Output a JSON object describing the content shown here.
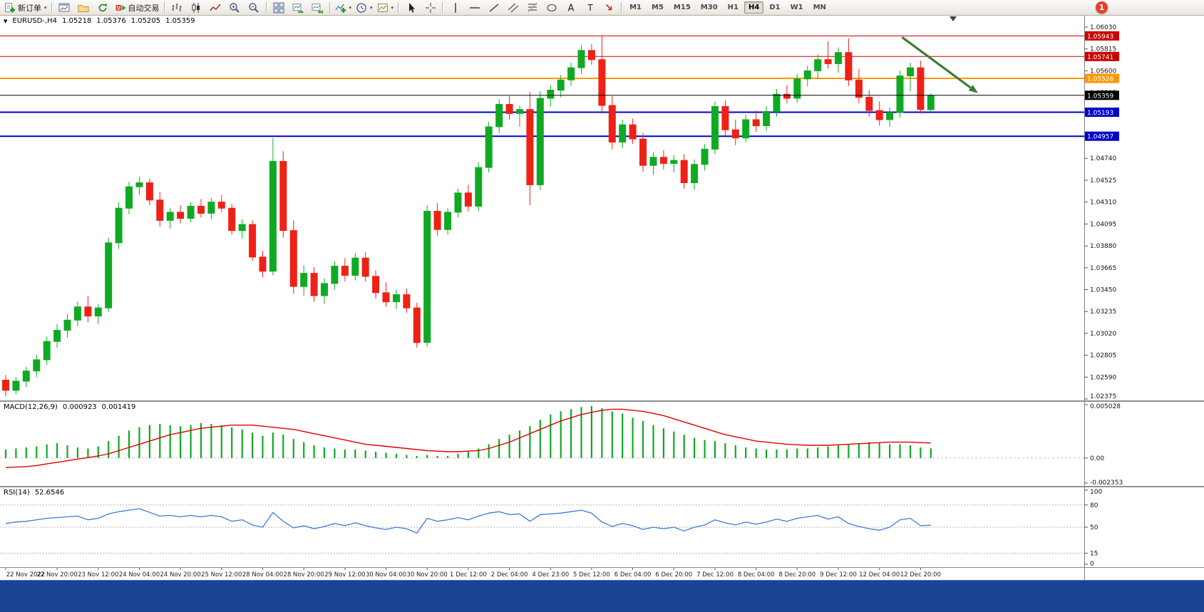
{
  "app": {
    "notification_count": "1"
  },
  "toolbar": {
    "active_timeframe": "H4",
    "items": [
      {
        "type": "button",
        "icon": "new-order-icon",
        "label": "新订单",
        "caret": true,
        "name": "new-order"
      },
      {
        "type": "sep"
      },
      {
        "type": "button",
        "icon": "chart-window-icon",
        "name": "new-chart"
      },
      {
        "type": "button",
        "icon": "profiles-icon",
        "name": "profiles"
      },
      {
        "type": "button",
        "icon": "refresh-icon",
        "name": "refresh"
      },
      {
        "type": "button",
        "icon": "autotrading-icon",
        "label": "自动交易",
        "name": "autotrading"
      },
      {
        "type": "sep"
      },
      {
        "type": "button",
        "icon": "bars-chart-icon",
        "name": "bar-chart-mode"
      },
      {
        "type": "button",
        "icon": "candles-chart-icon",
        "name": "candle-chart-mode"
      },
      {
        "type": "button",
        "icon": "line-chart-icon",
        "name": "line-chart-mode"
      },
      {
        "type": "button",
        "icon": "zoom-in-icon",
        "name": "zoom-in"
      },
      {
        "type": "button",
        "icon": "zoom-out-icon",
        "name": "zoom-out"
      },
      {
        "type": "sep"
      },
      {
        "type": "button",
        "icon": "tile-windows-icon",
        "name": "tile-windows"
      },
      {
        "type": "button",
        "icon": "auto-scroll-icon",
        "name": "auto-scroll"
      },
      {
        "type": "button",
        "icon": "chart-shift-icon",
        "name": "chart-shift"
      },
      {
        "type": "sep"
      },
      {
        "type": "button",
        "icon": "indicators-add-icon",
        "name": "indicators",
        "caret": true
      },
      {
        "type": "button",
        "icon": "period-clock-icon",
        "name": "periods",
        "caret": true
      },
      {
        "type": "button",
        "icon": "template-chart-icon",
        "name": "templates",
        "caret": true
      },
      {
        "type": "sep"
      },
      {
        "type": "button",
        "icon": "cursor-icon",
        "name": "cursor-tool"
      },
      {
        "type": "button",
        "icon": "crosshair-icon",
        "name": "crosshair-tool"
      },
      {
        "type": "sep"
      },
      {
        "type": "button",
        "icon": "vline-icon",
        "name": "vertical-line-tool"
      },
      {
        "type": "button",
        "icon": "hline-icon",
        "name": "horizontal-line-tool"
      },
      {
        "type": "button",
        "icon": "trendline-icon",
        "name": "trendline-tool"
      },
      {
        "type": "button",
        "icon": "channel-icon",
        "name": "channel-tool"
      },
      {
        "type": "button",
        "icon": "fibonacci-icon",
        "name": "fibonacci-tool"
      },
      {
        "type": "button",
        "icon": "shapes-icon",
        "name": "shapes-tool"
      },
      {
        "type": "button",
        "icon": "text-icon",
        "name": "text-tool"
      },
      {
        "type": "button",
        "icon": "label-icon",
        "name": "label-tool"
      },
      {
        "type": "button",
        "icon": "arrow-tool-icon",
        "name": "arrows-tool"
      },
      {
        "type": "sep"
      },
      {
        "type": "tf",
        "label": "M1"
      },
      {
        "type": "tf",
        "label": "M5"
      },
      {
        "type": "tf",
        "label": "M15"
      },
      {
        "type": "tf",
        "label": "M30"
      },
      {
        "type": "tf",
        "label": "H1"
      },
      {
        "type": "tf",
        "label": "H4"
      },
      {
        "type": "tf",
        "label": "D1"
      },
      {
        "type": "tf",
        "label": "W1"
      },
      {
        "type": "tf",
        "label": "MN"
      }
    ]
  },
  "chart": {
    "title": {
      "symbol": "EURUSD-,H4",
      "open": "1.05218",
      "high": "1.05376",
      "low": "1.05205",
      "close": "1.05359"
    },
    "macd_label": {
      "name": "MACD(12,26,9)",
      "value1": "0.000923",
      "value2": "0.001419"
    },
    "rsi_label": {
      "name": "RSI(14)",
      "value": "52.6546"
    }
  },
  "chart_data": {
    "type": "candlestick",
    "symbol": "EURUSD-",
    "period": "H4",
    "colors": {
      "up": "#0faa22",
      "down": "#ee2116",
      "macd_histogram": "#0faa22",
      "macd_signal": "#e00000",
      "rsi_line": "#3e7bd6",
      "arrow": "#3a7d35",
      "bid_line": "#000000",
      "level_red": "#cc0000",
      "level_orange": "#ff9900",
      "level_blue": "#0000cc"
    },
    "price_axis": {
      "top_value": 1.0603,
      "bottom_value": 1.02375,
      "step": 0.00215,
      "ticks": [
        "1.06030",
        "1.05815",
        "1.05600",
        "1.05385",
        "1.05170",
        "1.04955",
        "1.04740",
        "1.04525",
        "1.04310",
        "1.04095",
        "1.03880",
        "1.03665",
        "1.03450",
        "1.03235",
        "1.03020",
        "1.02805",
        "1.02590",
        "1.02375"
      ]
    },
    "time_axis": {
      "labels": [
        "22 Nov 2022",
        "22 Nov 20:00",
        "23 Nov 12:00",
        "24 Nov 04:00",
        "24 Nov 20:00",
        "25 Nov 12:00",
        "28 Nov 04:00",
        "28 Nov 20:00",
        "29 Nov 12:00",
        "30 Nov 04:00",
        "30 Nov 20:00",
        "1 Dec 12:00",
        "2 Dec 04:00",
        "4 Dec 23:00",
        "5 Dec 12:00",
        "6 Dec 04:00",
        "6 Dec 20:00",
        "7 Dec 12:00",
        "8 Dec 04:00",
        "8 Dec 20:00",
        "9 Dec 12:00",
        "12 Dec 04:00",
        "12 Dec 20:00"
      ],
      "label_candle_indices": [
        0,
        5,
        9,
        13,
        17,
        21,
        25,
        29,
        33,
        37,
        41,
        45,
        49,
        53,
        57,
        61,
        65,
        69,
        73,
        77,
        81,
        85,
        89
      ]
    },
    "candles": [
      [
        1.0256,
        1.0261,
        1.024,
        1.0246
      ],
      [
        1.0246,
        1.0259,
        1.0242,
        1.0255
      ],
      [
        1.0255,
        1.0269,
        1.0249,
        1.0265
      ],
      [
        1.0265,
        1.0281,
        1.0259,
        1.0276
      ],
      [
        1.0276,
        1.0299,
        1.0271,
        1.0294
      ],
      [
        1.0294,
        1.0311,
        1.0288,
        1.0305
      ],
      [
        1.0305,
        1.0321,
        1.0298,
        1.0315
      ],
      [
        1.0315,
        1.0333,
        1.0309,
        1.0328
      ],
      [
        1.0328,
        1.0339,
        1.0313,
        1.0319
      ],
      [
        1.0319,
        1.0331,
        1.0311,
        1.0327
      ],
      [
        1.0327,
        1.0396,
        1.0323,
        1.0391
      ],
      [
        1.0391,
        1.0431,
        1.0385,
        1.0425
      ],
      [
        1.0425,
        1.0451,
        1.0419,
        1.0446
      ],
      [
        1.0446,
        1.0456,
        1.0438,
        1.045
      ],
      [
        1.045,
        1.0454,
        1.0428,
        1.0433
      ],
      [
        1.0433,
        1.0441,
        1.0407,
        1.0413
      ],
      [
        1.0413,
        1.0425,
        1.0405,
        1.0421
      ],
      [
        1.0421,
        1.0428,
        1.041,
        1.0415
      ],
      [
        1.0415,
        1.0431,
        1.0411,
        1.0427
      ],
      [
        1.0427,
        1.0434,
        1.0416,
        1.042
      ],
      [
        1.042,
        1.0435,
        1.0414,
        1.0431
      ],
      [
        1.0431,
        1.0438,
        1.0421,
        1.0425
      ],
      [
        1.0425,
        1.0429,
        1.0399,
        1.0403
      ],
      [
        1.0403,
        1.0414,
        1.0395,
        1.0409
      ],
      [
        1.0409,
        1.0413,
        1.0373,
        1.0377
      ],
      [
        1.0377,
        1.0383,
        1.0357,
        1.0363
      ],
      [
        1.0363,
        1.0494,
        1.0359,
        1.0471
      ],
      [
        1.0471,
        1.0481,
        1.0396,
        1.0403
      ],
      [
        1.0403,
        1.0413,
        1.0341,
        1.0348
      ],
      [
        1.0348,
        1.0369,
        1.0339,
        1.0361
      ],
      [
        1.0361,
        1.0367,
        1.0333,
        1.0339
      ],
      [
        1.0339,
        1.0356,
        1.0331,
        1.0351
      ],
      [
        1.0351,
        1.0373,
        1.0345,
        1.0368
      ],
      [
        1.0368,
        1.0376,
        1.0353,
        1.0359
      ],
      [
        1.0359,
        1.0381,
        1.0354,
        1.0376
      ],
      [
        1.0376,
        1.0382,
        1.0353,
        1.0358
      ],
      [
        1.0358,
        1.0364,
        1.0336,
        1.0342
      ],
      [
        1.0342,
        1.0352,
        1.0328,
        1.0333
      ],
      [
        1.0333,
        1.0345,
        1.0326,
        1.034
      ],
      [
        1.034,
        1.0346,
        1.0322,
        1.0327
      ],
      [
        1.0327,
        1.0332,
        1.0288,
        1.0293
      ],
      [
        1.0293,
        1.0428,
        1.0289,
        1.0422
      ],
      [
        1.0422,
        1.043,
        1.0398,
        1.0404
      ],
      [
        1.0404,
        1.0425,
        1.0399,
        1.0421
      ],
      [
        1.0421,
        1.0444,
        1.0416,
        1.044
      ],
      [
        1.044,
        1.0448,
        1.0422,
        1.0427
      ],
      [
        1.0427,
        1.047,
        1.0422,
        1.0465
      ],
      [
        1.0465,
        1.051,
        1.046,
        1.0505
      ],
      [
        1.0505,
        1.0532,
        1.0499,
        1.0527
      ],
      [
        1.0527,
        1.0535,
        1.0512,
        1.0518
      ],
      [
        1.0518,
        1.0526,
        1.0505,
        1.0522
      ],
      [
        1.0522,
        1.0539,
        1.0428,
        1.0448
      ],
      [
        1.0448,
        1.054,
        1.0443,
        1.0533
      ],
      [
        1.0533,
        1.0546,
        1.0525,
        1.0541
      ],
      [
        1.0541,
        1.0556,
        1.0534,
        1.0551
      ],
      [
        1.0551,
        1.0568,
        1.0545,
        1.0563
      ],
      [
        1.0563,
        1.0585,
        1.0557,
        1.058
      ],
      [
        1.058,
        1.0586,
        1.0566,
        1.0571
      ],
      [
        1.0571,
        1.0595,
        1.0518,
        1.0526
      ],
      [
        1.0526,
        1.0535,
        1.0483,
        1.049
      ],
      [
        1.049,
        1.0512,
        1.0484,
        1.0507
      ],
      [
        1.0507,
        1.0513,
        1.0488,
        1.0493
      ],
      [
        1.0493,
        1.0499,
        1.0461,
        1.0467
      ],
      [
        1.0467,
        1.048,
        1.0458,
        1.0475
      ],
      [
        1.0475,
        1.0482,
        1.0463,
        1.0469
      ],
      [
        1.0469,
        1.0477,
        1.046,
        1.0472
      ],
      [
        1.0472,
        1.0478,
        1.0444,
        1.045
      ],
      [
        1.045,
        1.0473,
        1.0443,
        1.0468
      ],
      [
        1.0468,
        1.0488,
        1.0462,
        1.0483
      ],
      [
        1.0483,
        1.053,
        1.0478,
        1.0525
      ],
      [
        1.0525,
        1.0531,
        1.0496,
        1.0502
      ],
      [
        1.0502,
        1.0512,
        1.0487,
        1.0494
      ],
      [
        1.0494,
        1.0517,
        1.049,
        1.0512
      ],
      [
        1.0512,
        1.0521,
        1.05,
        1.0506
      ],
      [
        1.0506,
        1.0525,
        1.0501,
        1.052
      ],
      [
        1.052,
        1.0542,
        1.0515,
        1.0537
      ],
      [
        1.0537,
        1.0546,
        1.0528,
        1.0533
      ],
      [
        1.0533,
        1.0557,
        1.0529,
        1.0552
      ],
      [
        1.0552,
        1.0565,
        1.0545,
        1.056
      ],
      [
        1.056,
        1.0576,
        1.0552,
        1.0571
      ],
      [
        1.0571,
        1.0589,
        1.0562,
        1.0567
      ],
      [
        1.0567,
        1.0583,
        1.0558,
        1.0578
      ],
      [
        1.0578,
        1.0592,
        1.0545,
        1.0551
      ],
      [
        1.0551,
        1.0562,
        1.0528,
        1.0534
      ],
      [
        1.0534,
        1.0541,
        1.0515,
        1.0521
      ],
      [
        1.0521,
        1.053,
        1.0506,
        1.0512
      ],
      [
        1.0512,
        1.0524,
        1.0505,
        1.0519
      ],
      [
        1.0519,
        1.056,
        1.0514,
        1.0555
      ],
      [
        1.0555,
        1.0568,
        1.054,
        1.0563
      ],
      [
        1.0563,
        1.057,
        1.0518,
        1.0522
      ],
      [
        1.05218,
        1.05376,
        1.05205,
        1.05359
      ]
    ],
    "hlines": [
      {
        "value": 1.05943,
        "label": "1.05943",
        "color": "#cc0000",
        "width": 1
      },
      {
        "value": 1.05741,
        "label": "1.05741",
        "color": "#cc0000",
        "width": 1
      },
      {
        "value": 1.05526,
        "label": "1.05526",
        "color": "#ff9900",
        "width": 2
      },
      {
        "value": 1.05193,
        "label": "1.05193",
        "color": "#0000cc",
        "width": 2
      },
      {
        "value": 1.04957,
        "label": "1.04957",
        "color": "#0000cc",
        "width": 2
      }
    ],
    "bid": {
      "value": 1.05359,
      "label": "1.05359"
    },
    "arrow_annotation": {
      "from": {
        "index": 87.2,
        "price": 1.0593
      },
      "to": {
        "index": 94.6,
        "price": 1.0538
      }
    },
    "macd": {
      "label": "MACD(12,26,9)",
      "current_main": 0.000923,
      "current_signal": 0.001419,
      "max": 0.005028,
      "min": -0.002353,
      "value_scale": 0.0001,
      "axis_labels": [
        "0.005028",
        "0.00",
        "-0.002353"
      ],
      "histogram": [
        8,
        9,
        10,
        11,
        13,
        14,
        12,
        10,
        9,
        11,
        16,
        21,
        26,
        29,
        31,
        32,
        31,
        30,
        31,
        33,
        32,
        31,
        29,
        27,
        24,
        21,
        24,
        22,
        18,
        15,
        12,
        10,
        9,
        8,
        8,
        7,
        6,
        5,
        4,
        3,
        2,
        3,
        2,
        2,
        4,
        6,
        9,
        13,
        18,
        22,
        26,
        30,
        36,
        41,
        44,
        46,
        48,
        49,
        47,
        44,
        42,
        38,
        35,
        31,
        28,
        25,
        22,
        19,
        17,
        16,
        14,
        12,
        10,
        9,
        8,
        8,
        8,
        9,
        9,
        10,
        11,
        12,
        13,
        14,
        15,
        14,
        13,
        13,
        12,
        10,
        9.23
      ],
      "signal": [
        -9,
        -8.5,
        -8,
        -7,
        -5.5,
        -4,
        -2.5,
        -1,
        0.5,
        2,
        4,
        7,
        10,
        13,
        16,
        19,
        22,
        24,
        26,
        28,
        29,
        30,
        31,
        31,
        31,
        30,
        29,
        28,
        27,
        25,
        23,
        21,
        19,
        17,
        15,
        13,
        12,
        11,
        10,
        9,
        8,
        7,
        6.5,
        6,
        6,
        6.5,
        7,
        9,
        12,
        15,
        19,
        23,
        27,
        31,
        35,
        38,
        41,
        43,
        45,
        46,
        46,
        45,
        44,
        42,
        40,
        37,
        34,
        31,
        28,
        25,
        22,
        20,
        18,
        16,
        15,
        14,
        13,
        12.5,
        12,
        12,
        12,
        12.5,
        13,
        13.5,
        14,
        14.5,
        15,
        15,
        15,
        14.5,
        14.19
      ]
    },
    "rsi": {
      "label": "RSI(14)",
      "current": 52.6546,
      "levels": [
        80,
        50,
        15
      ],
      "axis_labels": [
        "100",
        "80",
        "50",
        "15",
        "0"
      ],
      "values": [
        55,
        57,
        58,
        60,
        62,
        63,
        64,
        65,
        60,
        62,
        68,
        71,
        73,
        75,
        70,
        65,
        66,
        64,
        66,
        64,
        66,
        64,
        58,
        60,
        53,
        50,
        70,
        58,
        49,
        52,
        48,
        51,
        55,
        52,
        56,
        52,
        49,
        47,
        50,
        48,
        42,
        62,
        58,
        60,
        63,
        60,
        65,
        69,
        71,
        67,
        68,
        58,
        67,
        68,
        69,
        71,
        73,
        69,
        57,
        51,
        55,
        52,
        47,
        50,
        48,
        50,
        45,
        50,
        53,
        60,
        56,
        53,
        57,
        54,
        57,
        61,
        58,
        62,
        64,
        66,
        61,
        64,
        55,
        51,
        48,
        46,
        50,
        60,
        62,
        52,
        52.65
      ]
    }
  }
}
